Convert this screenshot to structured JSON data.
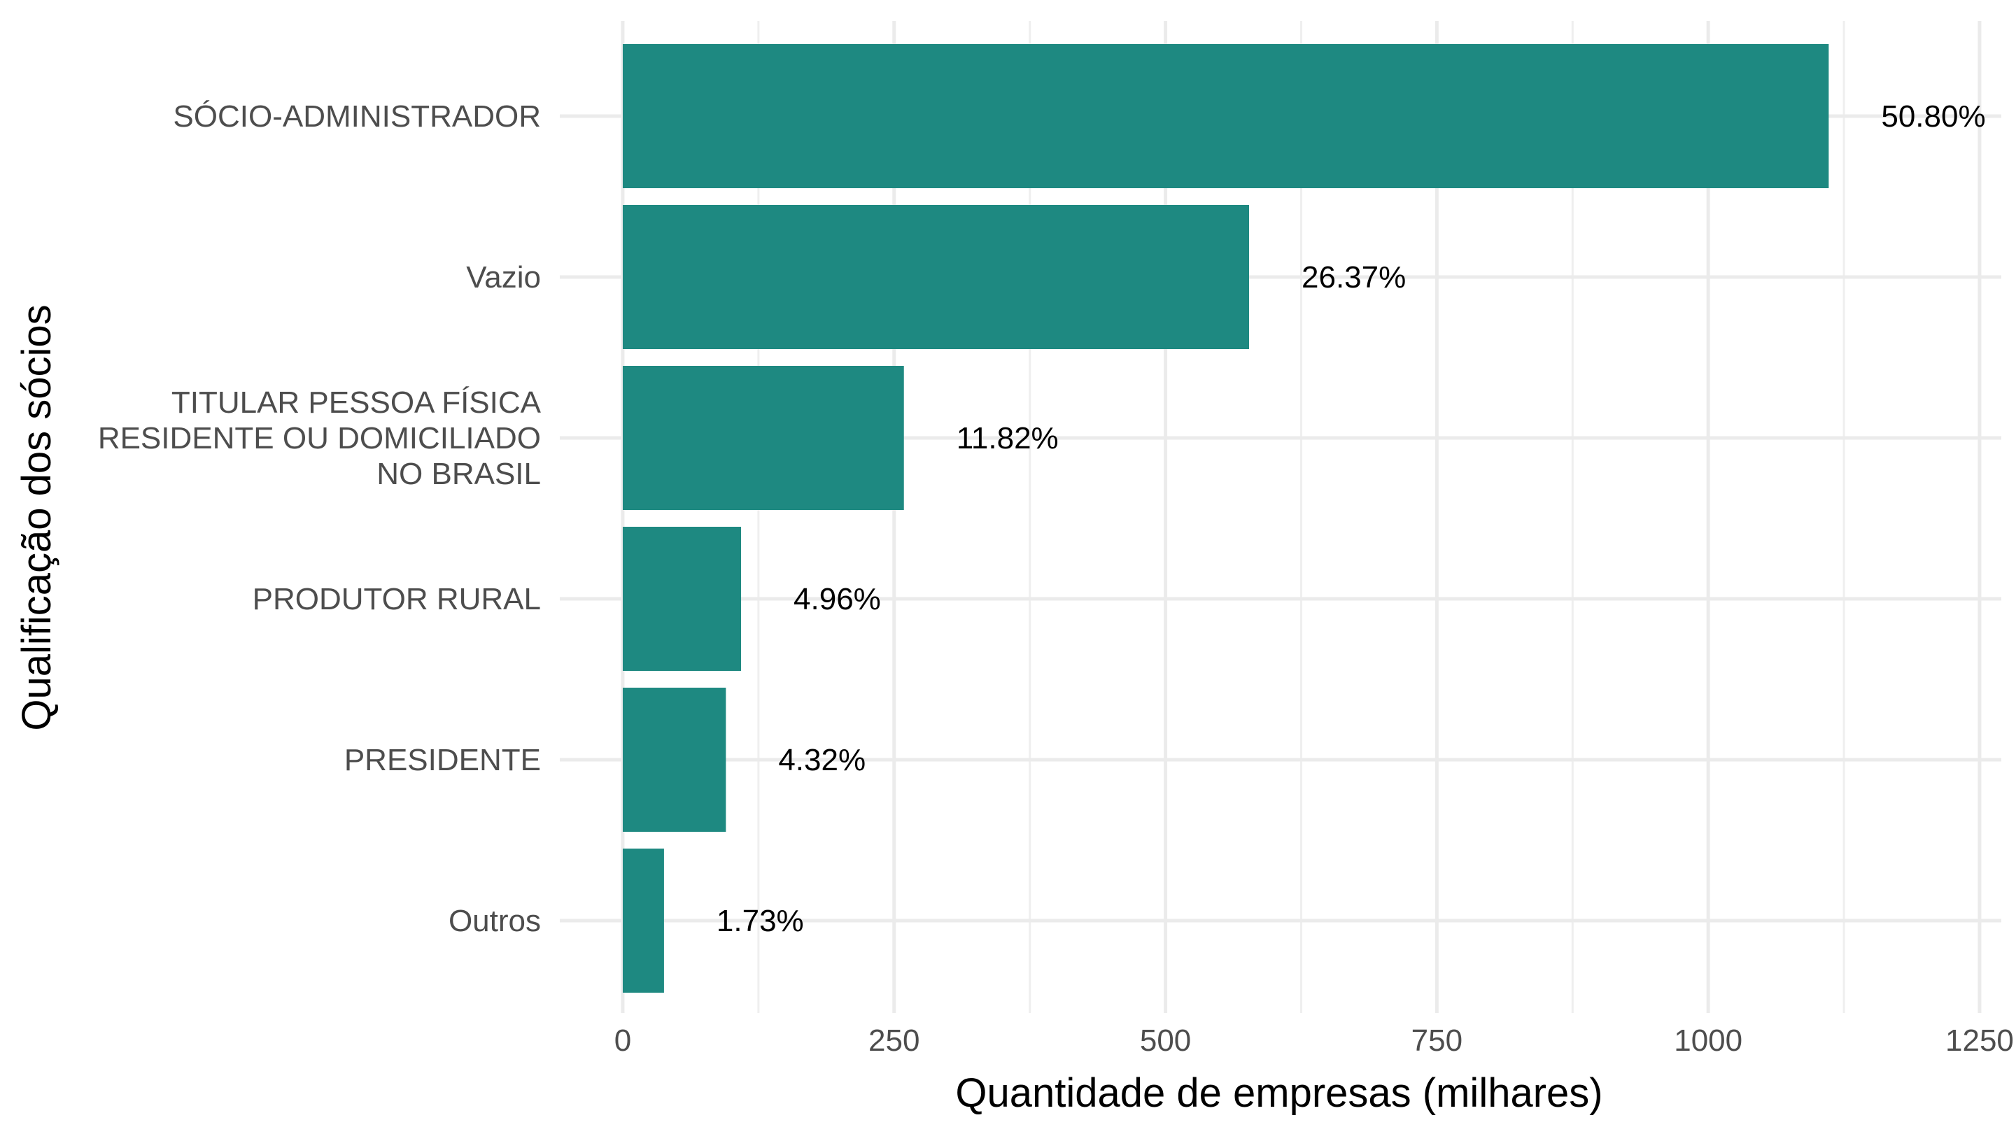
{
  "chart_data": {
    "type": "bar",
    "orientation": "horizontal",
    "categories": [
      "SÓCIO-ADMINISTRADOR",
      "Vazio",
      "TITULAR PESSOA FÍSICA RESIDENTE OU DOMICILIADO NO BRASIL",
      "PRODUTOR RURAL",
      "PRESIDENTE",
      "Outros"
    ],
    "category_lines": [
      [
        "SÓCIO-ADMINISTRADOR"
      ],
      [
        "Vazio"
      ],
      [
        "TITULAR PESSOA FÍSICA",
        "RESIDENTE OU DOMICILIADO",
        "NO BRASIL"
      ],
      [
        "PRODUTOR RURAL"
      ],
      [
        "PRESIDENTE"
      ],
      [
        "Outros"
      ]
    ],
    "values": [
      1111,
      577,
      259,
      109,
      95,
      38
    ],
    "data_labels": [
      "50.80%",
      "26.37%",
      "11.82%",
      "4.96%",
      "4.32%",
      "1.73%"
    ],
    "xlabel": "Quantidade de empresas (milhares)",
    "ylabel": "Qualificação dos sócios",
    "xlim": [
      -58,
      1270
    ],
    "x_ticks": [
      0,
      250,
      500,
      750,
      1000,
      1250
    ],
    "x_tick_labels": [
      "0",
      "250",
      "500",
      "750",
      "1000",
      "1250"
    ],
    "grid": true,
    "legend": "none",
    "bar_color": "#1a877e"
  }
}
